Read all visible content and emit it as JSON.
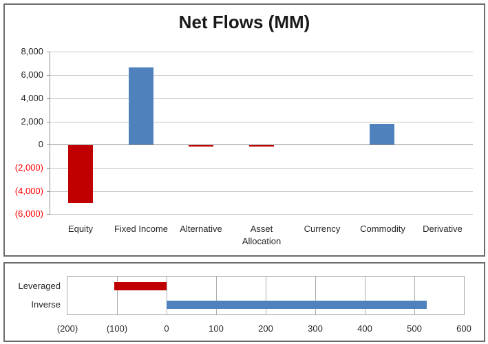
{
  "colors": {
    "positive_bar": "#4F81BD",
    "negative_bar": "#C00000",
    "negative_label": "#FF0000",
    "text": "#262626",
    "gridline": "#C6C6C6",
    "axis_line": "#8C8C8C",
    "panel_border": "#6B6B6B"
  },
  "chart_data": [
    {
      "type": "bar",
      "orientation": "vertical",
      "title": "Net Flows (MM)",
      "categories": [
        "Equity",
        "Fixed Income",
        "Alternative",
        "Asset Allocation",
        "Currency",
        "Commodity",
        "Derivative"
      ],
      "values": [
        -4950,
        6600,
        -120,
        -120,
        0,
        1750,
        0
      ],
      "xlabel": "",
      "ylabel": "",
      "ylim": [
        -6000,
        8000
      ],
      "ytick_step": 2000,
      "ytick_labels": [
        "8,000",
        "6,000",
        "4,000",
        "2,000",
        "0",
        "(2,000)",
        "(4,000)",
        "(6,000)"
      ],
      "grid": true,
      "legend": false
    },
    {
      "type": "bar",
      "orientation": "horizontal",
      "title": "",
      "categories": [
        "Leveraged",
        "Inverse"
      ],
      "values": [
        -105,
        525
      ],
      "xlabel": "",
      "ylabel": "",
      "xlim": [
        -200,
        600
      ],
      "xtick_step": 100,
      "xtick_labels": [
        "(200)",
        "(100)",
        "0",
        "100",
        "200",
        "300",
        "400",
        "500",
        "600"
      ],
      "grid": true,
      "legend": false
    }
  ]
}
